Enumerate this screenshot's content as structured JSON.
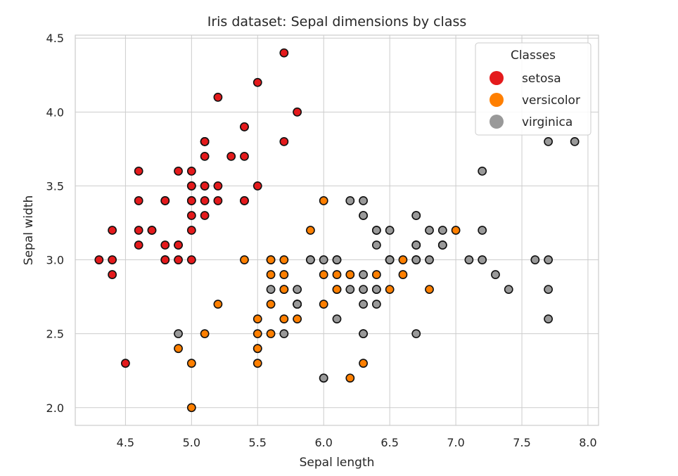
{
  "chart_data": {
    "type": "scatter",
    "title": "Iris dataset: Sepal dimensions by class",
    "xlabel": "Sepal length",
    "ylabel": "Sepal width",
    "xlim": [
      4.12,
      8.08
    ],
    "ylim": [
      1.88,
      4.52
    ],
    "x_ticks": [
      {
        "value": 4.5,
        "label": "4.5"
      },
      {
        "value": 5.0,
        "label": "5.0"
      },
      {
        "value": 5.5,
        "label": "5.5"
      },
      {
        "value": 6.0,
        "label": "6.0"
      },
      {
        "value": 6.5,
        "label": "6.5"
      },
      {
        "value": 7.0,
        "label": "7.0"
      },
      {
        "value": 7.5,
        "label": "7.5"
      },
      {
        "value": 8.0,
        "label": "8.0"
      }
    ],
    "y_ticks": [
      {
        "value": 2.0,
        "label": "2.0"
      },
      {
        "value": 2.5,
        "label": "2.5"
      },
      {
        "value": 3.0,
        "label": "3.0"
      },
      {
        "value": 3.5,
        "label": "3.5"
      },
      {
        "value": 4.0,
        "label": "4.0"
      },
      {
        "value": 4.5,
        "label": "4.5"
      }
    ],
    "grid": true,
    "legend": {
      "title": "Classes",
      "position": "top-right"
    },
    "series": [
      {
        "name": "setosa",
        "color": "#e41a1c",
        "points": [
          [
            5.1,
            3.5
          ],
          [
            4.9,
            3.0
          ],
          [
            4.7,
            3.2
          ],
          [
            4.6,
            3.1
          ],
          [
            5.0,
            3.6
          ],
          [
            5.4,
            3.9
          ],
          [
            4.6,
            3.4
          ],
          [
            5.0,
            3.4
          ],
          [
            4.4,
            2.9
          ],
          [
            4.9,
            3.1
          ],
          [
            5.4,
            3.7
          ],
          [
            4.8,
            3.4
          ],
          [
            4.8,
            3.0
          ],
          [
            4.3,
            3.0
          ],
          [
            5.8,
            4.0
          ],
          [
            5.7,
            4.4
          ],
          [
            5.4,
            3.9
          ],
          [
            5.1,
            3.5
          ],
          [
            5.7,
            3.8
          ],
          [
            5.1,
            3.8
          ],
          [
            5.4,
            3.4
          ],
          [
            5.1,
            3.7
          ],
          [
            4.6,
            3.6
          ],
          [
            5.1,
            3.3
          ],
          [
            4.8,
            3.4
          ],
          [
            5.0,
            3.0
          ],
          [
            5.0,
            3.4
          ],
          [
            5.2,
            3.5
          ],
          [
            5.2,
            3.4
          ],
          [
            4.7,
            3.2
          ],
          [
            4.8,
            3.1
          ],
          [
            5.4,
            3.4
          ],
          [
            5.2,
            4.1
          ],
          [
            5.5,
            4.2
          ],
          [
            4.9,
            3.1
          ],
          [
            5.0,
            3.2
          ],
          [
            5.5,
            3.5
          ],
          [
            4.9,
            3.6
          ],
          [
            4.4,
            3.0
          ],
          [
            5.1,
            3.4
          ],
          [
            5.0,
            3.5
          ],
          [
            4.5,
            2.3
          ],
          [
            4.4,
            3.2
          ],
          [
            5.0,
            3.5
          ],
          [
            5.1,
            3.8
          ],
          [
            4.8,
            3.0
          ],
          [
            5.1,
            3.8
          ],
          [
            4.6,
            3.2
          ],
          [
            5.3,
            3.7
          ],
          [
            5.0,
            3.3
          ]
        ]
      },
      {
        "name": "versicolor",
        "color": "#ff7f00",
        "points": [
          [
            7.0,
            3.2
          ],
          [
            6.4,
            3.2
          ],
          [
            6.9,
            3.1
          ],
          [
            5.5,
            2.3
          ],
          [
            6.5,
            2.8
          ],
          [
            5.7,
            2.8
          ],
          [
            6.3,
            3.3
          ],
          [
            4.9,
            2.4
          ],
          [
            6.6,
            2.9
          ],
          [
            5.2,
            2.7
          ],
          [
            5.0,
            2.0
          ],
          [
            5.9,
            3.0
          ],
          [
            6.0,
            2.2
          ],
          [
            6.1,
            2.9
          ],
          [
            5.6,
            2.9
          ],
          [
            6.7,
            3.1
          ],
          [
            5.6,
            3.0
          ],
          [
            5.8,
            2.7
          ],
          [
            6.2,
            2.2
          ],
          [
            5.6,
            2.5
          ],
          [
            5.9,
            3.2
          ],
          [
            6.1,
            2.8
          ],
          [
            6.3,
            2.5
          ],
          [
            6.1,
            2.8
          ],
          [
            6.4,
            2.9
          ],
          [
            6.6,
            3.0
          ],
          [
            6.8,
            2.8
          ],
          [
            6.7,
            3.0
          ],
          [
            6.0,
            2.9
          ],
          [
            5.7,
            2.6
          ],
          [
            5.5,
            2.4
          ],
          [
            5.5,
            2.4
          ],
          [
            5.8,
            2.7
          ],
          [
            6.0,
            2.7
          ],
          [
            5.4,
            3.0
          ],
          [
            6.0,
            3.4
          ],
          [
            6.7,
            3.1
          ],
          [
            6.3,
            2.3
          ],
          [
            5.6,
            3.0
          ],
          [
            5.5,
            2.5
          ],
          [
            5.5,
            2.6
          ],
          [
            6.1,
            3.0
          ],
          [
            5.8,
            2.6
          ],
          [
            5.0,
            2.3
          ],
          [
            5.6,
            2.7
          ],
          [
            5.7,
            3.0
          ],
          [
            5.7,
            2.9
          ],
          [
            6.2,
            2.9
          ],
          [
            5.1,
            2.5
          ],
          [
            5.7,
            2.8
          ]
        ]
      },
      {
        "name": "virginica",
        "color": "#999999",
        "points": [
          [
            6.3,
            3.3
          ],
          [
            5.8,
            2.7
          ],
          [
            7.1,
            3.0
          ],
          [
            6.3,
            2.9
          ],
          [
            6.5,
            3.0
          ],
          [
            7.6,
            3.0
          ],
          [
            4.9,
            2.5
          ],
          [
            7.3,
            2.9
          ],
          [
            6.7,
            2.5
          ],
          [
            7.2,
            3.6
          ],
          [
            6.5,
            3.2
          ],
          [
            6.4,
            2.7
          ],
          [
            6.8,
            3.0
          ],
          [
            5.7,
            2.5
          ],
          [
            5.8,
            2.8
          ],
          [
            6.4,
            3.2
          ],
          [
            6.5,
            3.0
          ],
          [
            7.7,
            3.8
          ],
          [
            7.7,
            2.6
          ],
          [
            6.0,
            2.2
          ],
          [
            6.9,
            3.2
          ],
          [
            5.6,
            2.8
          ],
          [
            7.7,
            2.8
          ],
          [
            6.3,
            2.7
          ],
          [
            6.7,
            3.3
          ],
          [
            7.2,
            3.2
          ],
          [
            6.2,
            2.8
          ],
          [
            6.1,
            3.0
          ],
          [
            6.4,
            2.8
          ],
          [
            7.2,
            3.0
          ],
          [
            7.4,
            2.8
          ],
          [
            7.9,
            3.8
          ],
          [
            6.4,
            2.8
          ],
          [
            6.3,
            2.8
          ],
          [
            6.1,
            2.6
          ],
          [
            7.7,
            3.0
          ],
          [
            6.3,
            3.4
          ],
          [
            6.4,
            3.1
          ],
          [
            6.0,
            3.0
          ],
          [
            6.9,
            3.1
          ],
          [
            6.7,
            3.1
          ],
          [
            6.9,
            3.1
          ],
          [
            5.8,
            2.7
          ],
          [
            6.8,
            3.2
          ],
          [
            6.7,
            3.3
          ],
          [
            6.7,
            3.0
          ],
          [
            6.3,
            2.5
          ],
          [
            6.5,
            3.0
          ],
          [
            6.2,
            3.4
          ],
          [
            5.9,
            3.0
          ]
        ]
      }
    ]
  }
}
